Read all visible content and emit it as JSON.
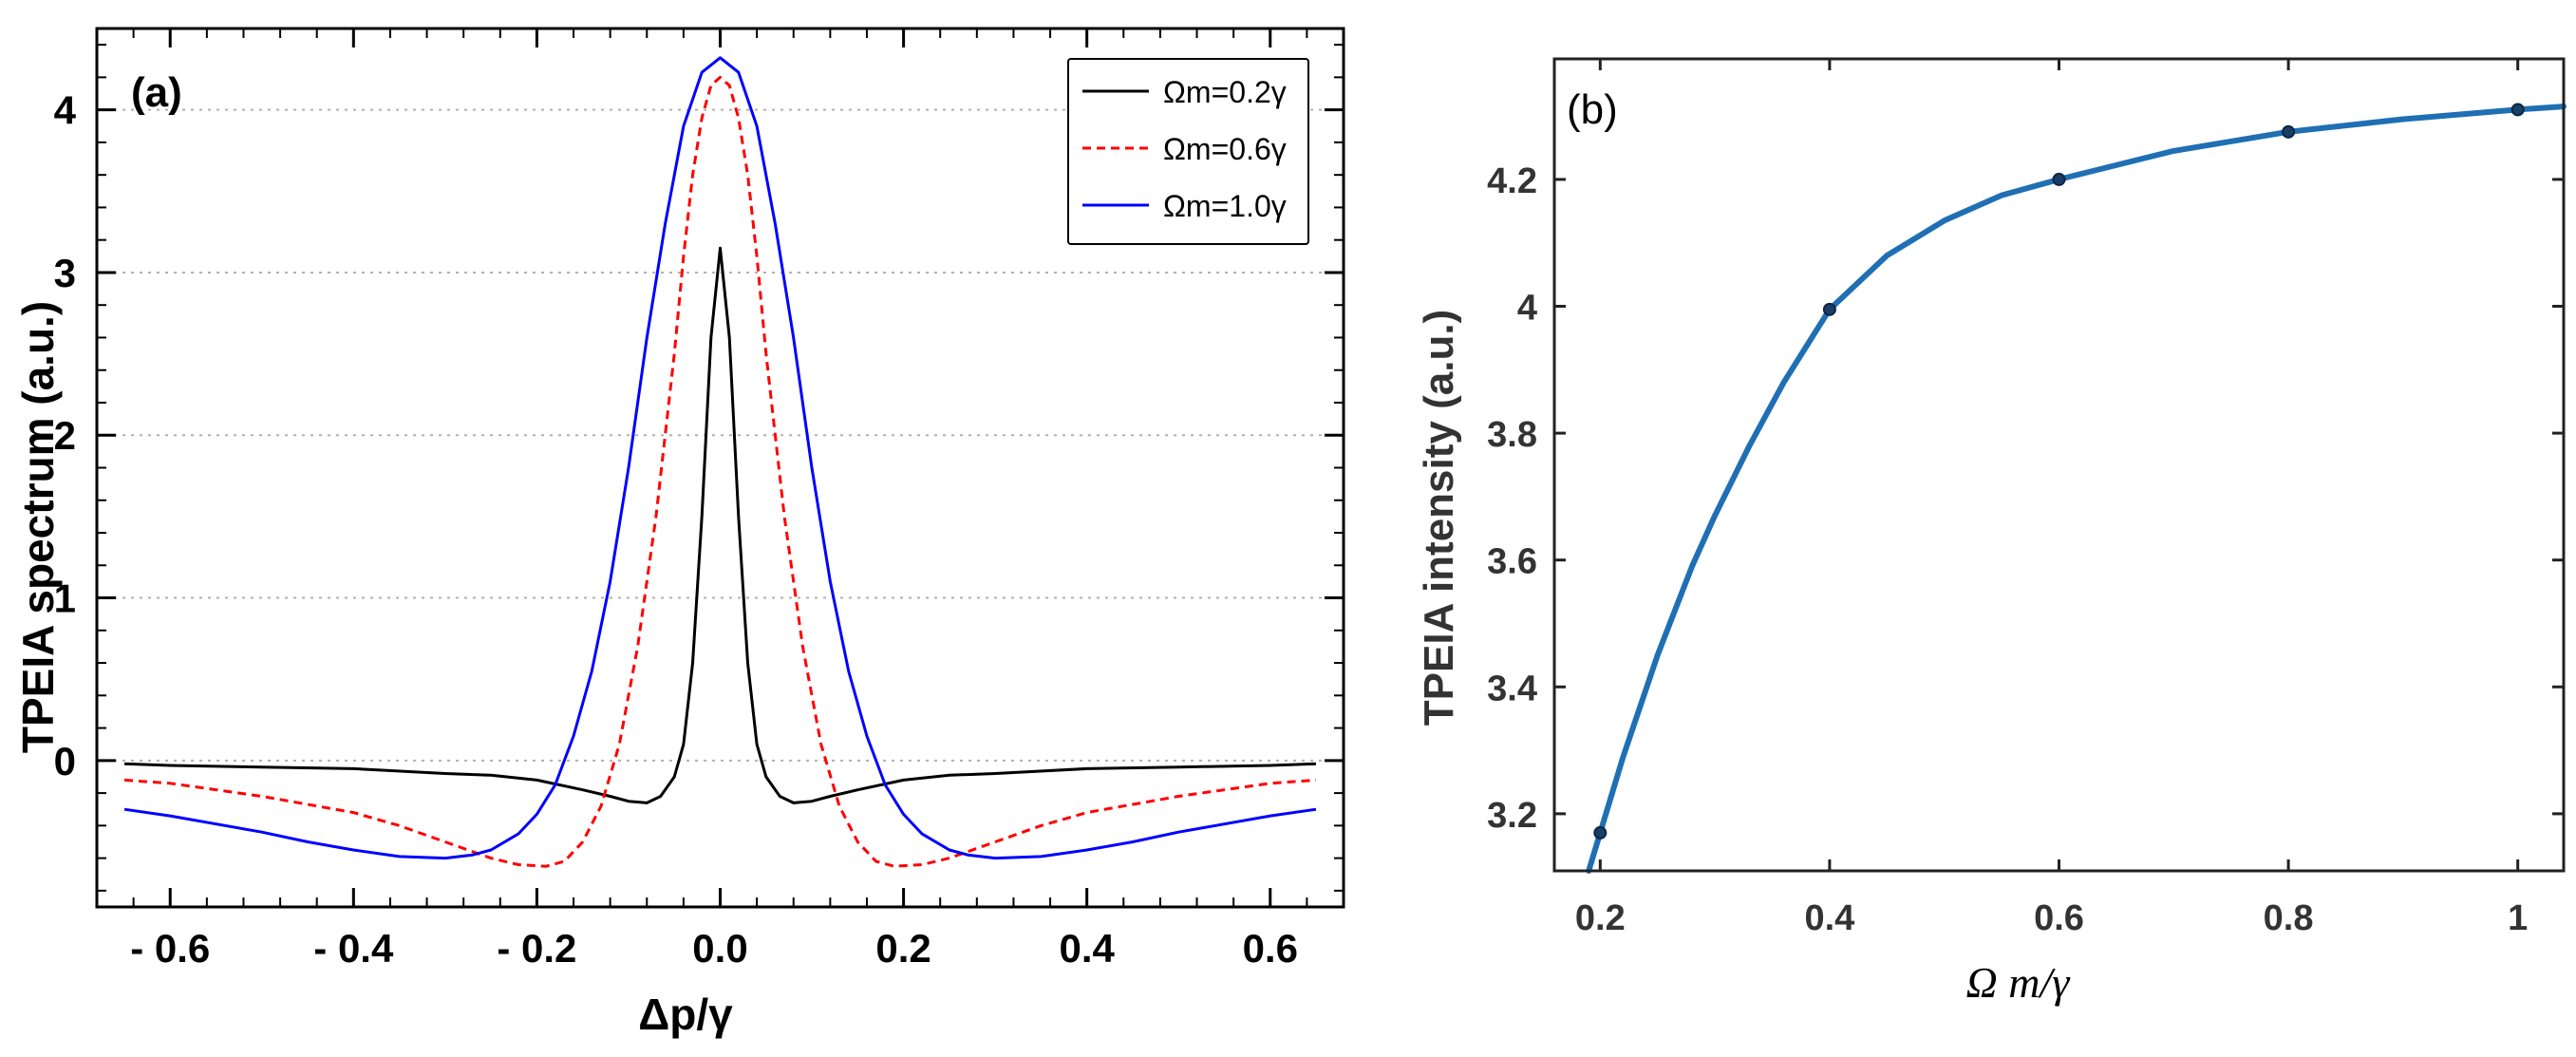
{
  "chart_data": [
    {
      "type": "line",
      "panel_label": "(a)",
      "xlabel": "Δp/γ",
      "ylabel": "TPEIA spectrum (a.u.)",
      "xlim": [
        -0.68,
        0.68
      ],
      "ylim": [
        -0.9,
        4.5
      ],
      "xticks": [
        -0.6,
        -0.4,
        -0.2,
        0.0,
        0.2,
        0.4,
        0.6
      ],
      "xtick_labels": [
        "- 0.6",
        "- 0.4",
        "- 0.2",
        "0.0",
        "0.2",
        "0.4",
        "0.6"
      ],
      "yticks": [
        0,
        1,
        2,
        3,
        4
      ],
      "ytick_labels": [
        "0",
        "1",
        "2",
        "3",
        "4"
      ],
      "legend_position": "top-right",
      "series": [
        {
          "name": "Ωm=0.2γ",
          "color": "#000000",
          "dash": "solid",
          "x": [
            -0.65,
            -0.6,
            -0.5,
            -0.4,
            -0.3,
            -0.25,
            -0.2,
            -0.15,
            -0.12,
            -0.1,
            -0.08,
            -0.065,
            -0.05,
            -0.04,
            -0.03,
            -0.02,
            -0.01,
            0.0,
            0.01,
            0.02,
            0.03,
            0.04,
            0.05,
            0.065,
            0.08,
            0.1,
            0.12,
            0.15,
            0.2,
            0.25,
            0.3,
            0.4,
            0.5,
            0.6,
            0.65
          ],
          "y": [
            -0.02,
            -0.03,
            -0.04,
            -0.05,
            -0.08,
            -0.09,
            -0.12,
            -0.18,
            -0.22,
            -0.25,
            -0.26,
            -0.22,
            -0.1,
            0.1,
            0.6,
            1.5,
            2.6,
            3.15,
            2.6,
            1.5,
            0.6,
            0.1,
            -0.1,
            -0.22,
            -0.26,
            -0.25,
            -0.22,
            -0.18,
            -0.12,
            -0.09,
            -0.08,
            -0.05,
            -0.04,
            -0.03,
            -0.02
          ]
        },
        {
          "name": "Ωm=0.6γ",
          "color": "#ff0000",
          "dash": "dashed",
          "x": [
            -0.65,
            -0.6,
            -0.5,
            -0.4,
            -0.35,
            -0.3,
            -0.25,
            -0.22,
            -0.19,
            -0.17,
            -0.15,
            -0.13,
            -0.11,
            -0.09,
            -0.07,
            -0.05,
            -0.04,
            -0.03,
            -0.02,
            -0.01,
            0.0,
            0.01,
            0.02,
            0.03,
            0.04,
            0.05,
            0.07,
            0.09,
            0.11,
            0.13,
            0.15,
            0.17,
            0.19,
            0.22,
            0.25,
            0.3,
            0.35,
            0.4,
            0.5,
            0.6,
            0.65
          ],
          "y": [
            -0.12,
            -0.14,
            -0.22,
            -0.32,
            -0.4,
            -0.5,
            -0.6,
            -0.64,
            -0.65,
            -0.62,
            -0.5,
            -0.28,
            0.1,
            0.7,
            1.5,
            2.5,
            3.1,
            3.6,
            3.95,
            4.15,
            4.2,
            4.15,
            3.95,
            3.6,
            3.1,
            2.5,
            1.5,
            0.7,
            0.1,
            -0.28,
            -0.5,
            -0.62,
            -0.65,
            -0.64,
            -0.6,
            -0.5,
            -0.4,
            -0.32,
            -0.22,
            -0.14,
            -0.12
          ]
        },
        {
          "name": "Ωm=1.0γ",
          "color": "#0000ff",
          "dash": "solid",
          "x": [
            -0.65,
            -0.6,
            -0.5,
            -0.45,
            -0.4,
            -0.35,
            -0.3,
            -0.27,
            -0.25,
            -0.22,
            -0.2,
            -0.18,
            -0.16,
            -0.14,
            -0.12,
            -0.1,
            -0.08,
            -0.06,
            -0.04,
            -0.02,
            0.0,
            0.02,
            0.04,
            0.06,
            0.08,
            0.1,
            0.12,
            0.14,
            0.16,
            0.18,
            0.2,
            0.22,
            0.25,
            0.27,
            0.3,
            0.35,
            0.4,
            0.45,
            0.5,
            0.6,
            0.65
          ],
          "y": [
            -0.3,
            -0.34,
            -0.44,
            -0.5,
            -0.55,
            -0.59,
            -0.6,
            -0.58,
            -0.55,
            -0.45,
            -0.33,
            -0.15,
            0.15,
            0.55,
            1.1,
            1.8,
            2.6,
            3.3,
            3.9,
            4.23,
            4.32,
            4.23,
            3.9,
            3.3,
            2.6,
            1.8,
            1.1,
            0.55,
            0.15,
            -0.15,
            -0.33,
            -0.45,
            -0.55,
            -0.58,
            -0.6,
            -0.59,
            -0.55,
            -0.5,
            -0.44,
            -0.34,
            -0.3
          ]
        }
      ]
    },
    {
      "type": "line",
      "panel_label": "(b)",
      "xlabel": "Ω m/γ",
      "ylabel": "TPEIA intensity (a.u.)",
      "xlim": [
        0.16,
        1.04
      ],
      "ylim": [
        3.11,
        4.39
      ],
      "xticks": [
        0.2,
        0.4,
        0.6,
        0.8,
        1.0
      ],
      "xtick_labels": [
        "0.2",
        "0.4",
        "0.6",
        "0.8",
        "1"
      ],
      "yticks": [
        3.2,
        3.4,
        3.6,
        3.8,
        4.0,
        4.2
      ],
      "ytick_labels": [
        "3.2",
        "3.4",
        "3.6",
        "3.8",
        "4",
        "4.2"
      ],
      "series": [
        {
          "name": "TPEIA intensity",
          "color": "#1f6fb4",
          "x": [
            0.19,
            0.2,
            0.22,
            0.25,
            0.28,
            0.3,
            0.33,
            0.36,
            0.4,
            0.45,
            0.5,
            0.55,
            0.6,
            0.7,
            0.8,
            0.9,
            1.0,
            1.04
          ],
          "y": [
            3.11,
            3.17,
            3.29,
            3.45,
            3.59,
            3.67,
            3.78,
            3.88,
            3.995,
            4.08,
            4.135,
            4.175,
            4.2,
            4.245,
            4.275,
            4.295,
            4.31,
            4.315
          ]
        }
      ],
      "markers": {
        "x": [
          0.2,
          0.4,
          0.6,
          0.8,
          1.0
        ],
        "y": [
          3.17,
          3.995,
          4.2,
          4.275,
          4.31
        ]
      }
    }
  ]
}
